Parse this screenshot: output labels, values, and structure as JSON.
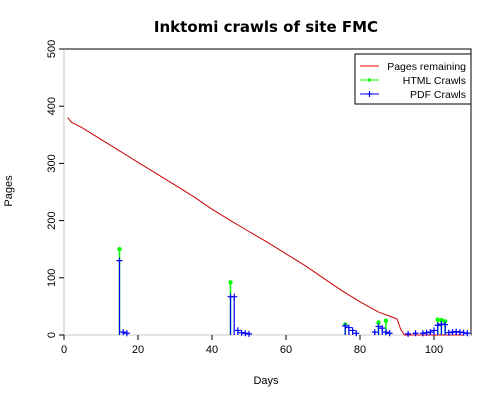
{
  "chart_data": {
    "type": "line",
    "title": "Inktomi crawls of site FMC",
    "xlabel": "Days",
    "ylabel": "Pages",
    "xlim": [
      0,
      110
    ],
    "ylim": [
      0,
      500
    ],
    "xticks": [
      0,
      20,
      40,
      60,
      80,
      100
    ],
    "yticks": [
      0,
      100,
      200,
      300,
      400,
      500
    ],
    "legend": {
      "position": "top-right",
      "entries": [
        {
          "label": "Pages remaining",
          "color": "#ff0000",
          "style": "line"
        },
        {
          "label": "HTML Crawls",
          "color": "#00ff00",
          "style": "line-marker"
        },
        {
          "label": "PDF Crawls",
          "color": "#0000ff",
          "style": "line-marker"
        }
      ]
    },
    "series": [
      {
        "name": "Pages remaining",
        "color": "#cc0000",
        "x": [
          1,
          2,
          5,
          8,
          11,
          15,
          20,
          25,
          30,
          35,
          40,
          45,
          50,
          55,
          60,
          65,
          70,
          75,
          80,
          85,
          88,
          90,
          91,
          92,
          95,
          100,
          105,
          108
        ],
        "y": [
          380,
          372,
          362,
          350,
          338,
          322,
          302,
          282,
          262,
          242,
          220,
          200,
          181,
          162,
          142,
          122,
          100,
          78,
          58,
          40,
          33,
          28,
          10,
          0,
          0,
          0,
          0,
          0
        ]
      },
      {
        "name": "HTML Crawls",
        "color": "#00ff00",
        "x": [
          15,
          45,
          76,
          85,
          87,
          101,
          102,
          103
        ],
        "y": [
          150,
          92,
          18,
          22,
          25,
          27,
          26,
          24
        ]
      },
      {
        "name": "PDF Crawls",
        "color": "#0000ff",
        "x": [
          15,
          16,
          17,
          45,
          46,
          47,
          48,
          49,
          50,
          76,
          77,
          78,
          79,
          84,
          85,
          86,
          87,
          88,
          93,
          95,
          97,
          98,
          99,
          100,
          101,
          102,
          103,
          104,
          105,
          106,
          107,
          108,
          109
        ],
        "y": [
          130,
          5,
          3,
          67,
          67,
          8,
          4,
          3,
          2,
          16,
          13,
          8,
          3,
          5,
          15,
          12,
          5,
          3,
          2,
          3,
          3,
          4,
          5,
          8,
          17,
          19,
          18,
          4,
          5,
          6,
          5,
          4,
          3
        ]
      }
    ]
  }
}
